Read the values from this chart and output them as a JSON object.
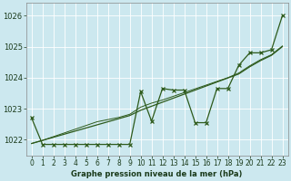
{
  "xlabel": "Graphe pression niveau de la mer (hPa)",
  "bg_color": "#cce8ef",
  "grid_color": "#ffffff",
  "line_color": "#2d5a1b",
  "x_values": [
    0,
    1,
    2,
    3,
    4,
    5,
    6,
    7,
    8,
    9,
    10,
    11,
    12,
    13,
    14,
    15,
    16,
    17,
    18,
    19,
    20,
    21,
    22,
    23
  ],
  "series_main": [
    1022.7,
    1021.85,
    1021.85,
    1021.85,
    1021.85,
    1021.85,
    1021.85,
    1021.85,
    1021.85,
    1021.85,
    1023.55,
    1022.6,
    1023.65,
    1023.6,
    1023.6,
    1022.55,
    1022.55,
    1023.65,
    1023.65,
    1024.4,
    1024.8,
    1024.8,
    1024.9,
    1026.0
  ],
  "trend1": [
    1021.88,
    1021.98,
    1022.08,
    1022.18,
    1022.28,
    1022.38,
    1022.48,
    1022.58,
    1022.68,
    1022.78,
    1022.95,
    1023.08,
    1023.21,
    1023.34,
    1023.47,
    1023.6,
    1023.73,
    1023.86,
    1023.99,
    1024.12,
    1024.35,
    1024.55,
    1024.72,
    1025.0
  ],
  "trend2": [
    1021.88,
    1021.98,
    1022.1,
    1022.22,
    1022.34,
    1022.46,
    1022.58,
    1022.65,
    1022.72,
    1022.82,
    1023.05,
    1023.18,
    1023.28,
    1023.4,
    1023.52,
    1023.64,
    1023.76,
    1023.88,
    1024.0,
    1024.15,
    1024.38,
    1024.58,
    1024.74,
    1025.02
  ],
  "ylim": [
    1021.5,
    1026.4
  ],
  "yticks": [
    1022,
    1023,
    1024,
    1025,
    1026
  ],
  "xticks": [
    0,
    1,
    2,
    3,
    4,
    5,
    6,
    7,
    8,
    9,
    10,
    11,
    12,
    13,
    14,
    15,
    16,
    17,
    18,
    19,
    20,
    21,
    22,
    23
  ],
  "tick_fontsize": 5.5,
  "xlabel_fontsize": 6.0
}
